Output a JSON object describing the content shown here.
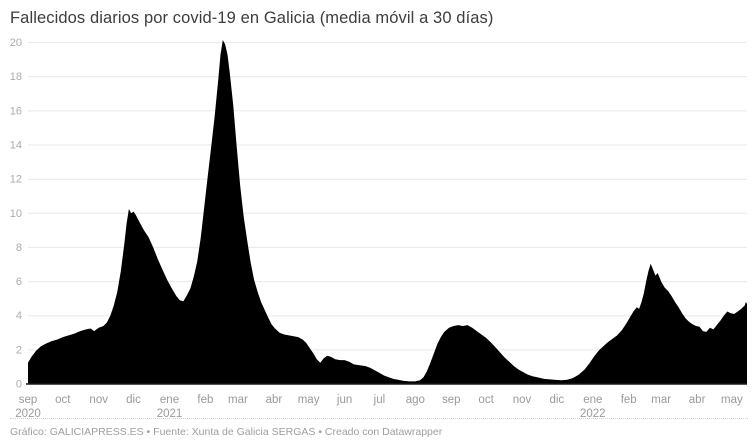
{
  "colors": {
    "area": "#000000",
    "grid": "#e8e8e8",
    "baseline": "#1a1a1a",
    "axis_text_x": "#9a9a9a",
    "axis_text_y": "#ababab",
    "title_text": "#3d3d3d",
    "footer_text": "#9e9e9e"
  },
  "footer": {
    "prefix": "Gráfico: ",
    "source_label": "GALICIAPRESS.ES",
    "middle": " • Fuente: Xunta de Galicia SERGAS • ",
    "credit": "Creado con Datawrapper"
  },
  "chart_data": {
    "type": "area",
    "title": "Fallecidos diarios por covid-19 en Galicia (media móvil a 30 días)",
    "xlabel": "",
    "ylabel": "",
    "ylim": [
      0,
      20
    ],
    "ytick_step": 2,
    "grid": true,
    "legend": "none",
    "x_range": [
      "2020-09-01",
      "2022-05-14"
    ],
    "month_names": [
      "ene",
      "feb",
      "mar",
      "abr",
      "may",
      "jun",
      "jul",
      "ago",
      "sep",
      "oct",
      "nov",
      "dic"
    ],
    "year_labels": {
      "2020-09": "2020",
      "2021-01": "2021",
      "2022-01": "2022"
    },
    "points": [
      [
        "2020-09-01",
        1.25
      ],
      [
        "2020-09-04",
        1.6
      ],
      [
        "2020-09-08",
        1.95
      ],
      [
        "2020-09-12",
        2.2
      ],
      [
        "2020-09-16",
        2.35
      ],
      [
        "2020-09-21",
        2.5
      ],
      [
        "2020-09-26",
        2.6
      ],
      [
        "2020-10-01",
        2.75
      ],
      [
        "2020-10-06",
        2.85
      ],
      [
        "2020-10-11",
        2.95
      ],
      [
        "2020-10-16",
        3.1
      ],
      [
        "2020-10-21",
        3.2
      ],
      [
        "2020-10-25",
        3.25
      ],
      [
        "2020-10-28",
        3.1
      ],
      [
        "2020-11-01",
        3.3
      ],
      [
        "2020-11-05",
        3.4
      ],
      [
        "2020-11-08",
        3.6
      ],
      [
        "2020-11-11",
        4.0
      ],
      [
        "2020-11-14",
        4.6
      ],
      [
        "2020-11-17",
        5.4
      ],
      [
        "2020-11-20",
        6.6
      ],
      [
        "2020-11-23",
        8.2
      ],
      [
        "2020-11-25",
        9.4
      ],
      [
        "2020-11-27",
        10.25
      ],
      [
        "2020-11-29",
        10.0
      ],
      [
        "2020-12-01",
        10.1
      ],
      [
        "2020-12-03",
        9.9
      ],
      [
        "2020-12-06",
        9.5
      ],
      [
        "2020-12-10",
        9.0
      ],
      [
        "2020-12-14",
        8.6
      ],
      [
        "2020-12-18",
        8.0
      ],
      [
        "2020-12-22",
        7.3
      ],
      [
        "2020-12-26",
        6.7
      ],
      [
        "2020-12-30",
        6.1
      ],
      [
        "2021-01-03",
        5.6
      ],
      [
        "2021-01-07",
        5.15
      ],
      [
        "2021-01-10",
        4.9
      ],
      [
        "2021-01-13",
        4.85
      ],
      [
        "2021-01-16",
        5.2
      ],
      [
        "2021-01-19",
        5.6
      ],
      [
        "2021-01-22",
        6.3
      ],
      [
        "2021-01-25",
        7.2
      ],
      [
        "2021-01-28",
        8.6
      ],
      [
        "2021-01-31",
        10.4
      ],
      [
        "2021-02-03",
        12.2
      ],
      [
        "2021-02-06",
        13.9
      ],
      [
        "2021-02-09",
        15.7
      ],
      [
        "2021-02-12",
        17.8
      ],
      [
        "2021-02-14",
        19.3
      ],
      [
        "2021-02-16",
        20.15
      ],
      [
        "2021-02-18",
        19.9
      ],
      [
        "2021-02-20",
        19.3
      ],
      [
        "2021-02-22",
        18.2
      ],
      [
        "2021-02-25",
        16.3
      ],
      [
        "2021-02-28",
        13.9
      ],
      [
        "2021-03-03",
        11.6
      ],
      [
        "2021-03-06",
        9.8
      ],
      [
        "2021-03-09",
        8.4
      ],
      [
        "2021-03-12",
        7.1
      ],
      [
        "2021-03-15",
        6.1
      ],
      [
        "2021-03-18",
        5.4
      ],
      [
        "2021-03-21",
        4.8
      ],
      [
        "2021-03-24",
        4.35
      ],
      [
        "2021-03-27",
        3.9
      ],
      [
        "2021-03-30",
        3.5
      ],
      [
        "2021-04-02",
        3.25
      ],
      [
        "2021-04-06",
        3.0
      ],
      [
        "2021-04-10",
        2.9
      ],
      [
        "2021-04-14",
        2.85
      ],
      [
        "2021-04-18",
        2.8
      ],
      [
        "2021-04-22",
        2.75
      ],
      [
        "2021-04-26",
        2.6
      ],
      [
        "2021-04-29",
        2.4
      ],
      [
        "2021-05-02",
        2.1
      ],
      [
        "2021-05-05",
        1.8
      ],
      [
        "2021-05-08",
        1.45
      ],
      [
        "2021-05-11",
        1.25
      ],
      [
        "2021-05-14",
        1.5
      ],
      [
        "2021-05-17",
        1.65
      ],
      [
        "2021-05-20",
        1.6
      ],
      [
        "2021-05-24",
        1.45
      ],
      [
        "2021-05-28",
        1.4
      ],
      [
        "2021-06-01",
        1.4
      ],
      [
        "2021-06-05",
        1.3
      ],
      [
        "2021-06-09",
        1.15
      ],
      [
        "2021-06-14",
        1.1
      ],
      [
        "2021-06-19",
        1.05
      ],
      [
        "2021-06-23",
        0.95
      ],
      [
        "2021-06-27",
        0.8
      ],
      [
        "2021-07-01",
        0.65
      ],
      [
        "2021-07-05",
        0.5
      ],
      [
        "2021-07-09",
        0.4
      ],
      [
        "2021-07-13",
        0.3
      ],
      [
        "2021-07-17",
        0.25
      ],
      [
        "2021-07-22",
        0.18
      ],
      [
        "2021-07-27",
        0.15
      ],
      [
        "2021-08-01",
        0.15
      ],
      [
        "2021-08-05",
        0.22
      ],
      [
        "2021-08-08",
        0.4
      ],
      [
        "2021-08-11",
        0.75
      ],
      [
        "2021-08-14",
        1.25
      ],
      [
        "2021-08-17",
        1.8
      ],
      [
        "2021-08-20",
        2.35
      ],
      [
        "2021-08-23",
        2.75
      ],
      [
        "2021-08-26",
        3.05
      ],
      [
        "2021-08-30",
        3.3
      ],
      [
        "2021-09-03",
        3.4
      ],
      [
        "2021-09-07",
        3.45
      ],
      [
        "2021-09-11",
        3.4
      ],
      [
        "2021-09-15",
        3.45
      ],
      [
        "2021-09-19",
        3.3
      ],
      [
        "2021-09-23",
        3.1
      ],
      [
        "2021-09-27",
        2.9
      ],
      [
        "2021-10-01",
        2.7
      ],
      [
        "2021-10-05",
        2.45
      ],
      [
        "2021-10-09",
        2.15
      ],
      [
        "2021-10-13",
        1.85
      ],
      [
        "2021-10-17",
        1.55
      ],
      [
        "2021-10-21",
        1.3
      ],
      [
        "2021-10-25",
        1.05
      ],
      [
        "2021-10-29",
        0.85
      ],
      [
        "2021-11-02",
        0.7
      ],
      [
        "2021-11-06",
        0.55
      ],
      [
        "2021-11-10",
        0.45
      ],
      [
        "2021-11-15",
        0.38
      ],
      [
        "2021-11-20",
        0.3
      ],
      [
        "2021-11-25",
        0.27
      ],
      [
        "2021-11-30",
        0.24
      ],
      [
        "2021-12-05",
        0.22
      ],
      [
        "2021-12-10",
        0.25
      ],
      [
        "2021-12-15",
        0.35
      ],
      [
        "2021-12-20",
        0.55
      ],
      [
        "2021-12-25",
        0.85
      ],
      [
        "2021-12-29",
        1.2
      ],
      [
        "2022-01-02",
        1.6
      ],
      [
        "2022-01-06",
        1.95
      ],
      [
        "2022-01-10",
        2.2
      ],
      [
        "2022-01-14",
        2.45
      ],
      [
        "2022-01-18",
        2.65
      ],
      [
        "2022-01-22",
        2.85
      ],
      [
        "2022-01-26",
        3.15
      ],
      [
        "2022-01-30",
        3.55
      ],
      [
        "2022-02-02",
        3.9
      ],
      [
        "2022-02-05",
        4.25
      ],
      [
        "2022-02-08",
        4.5
      ],
      [
        "2022-02-10",
        4.4
      ],
      [
        "2022-02-12",
        4.8
      ],
      [
        "2022-02-14",
        5.3
      ],
      [
        "2022-02-16",
        6.0
      ],
      [
        "2022-02-18",
        6.6
      ],
      [
        "2022-02-20",
        7.05
      ],
      [
        "2022-02-22",
        6.7
      ],
      [
        "2022-02-24",
        6.35
      ],
      [
        "2022-02-26",
        6.5
      ],
      [
        "2022-03-01",
        6.0
      ],
      [
        "2022-03-04",
        5.65
      ],
      [
        "2022-03-07",
        5.45
      ],
      [
        "2022-03-10",
        5.15
      ],
      [
        "2022-03-13",
        4.8
      ],
      [
        "2022-03-16",
        4.5
      ],
      [
        "2022-03-19",
        4.15
      ],
      [
        "2022-03-22",
        3.85
      ],
      [
        "2022-03-25",
        3.65
      ],
      [
        "2022-03-28",
        3.5
      ],
      [
        "2022-03-31",
        3.4
      ],
      [
        "2022-04-03",
        3.35
      ],
      [
        "2022-04-06",
        3.1
      ],
      [
        "2022-04-09",
        3.05
      ],
      [
        "2022-04-12",
        3.3
      ],
      [
        "2022-04-15",
        3.2
      ],
      [
        "2022-04-18",
        3.45
      ],
      [
        "2022-04-21",
        3.7
      ],
      [
        "2022-04-24",
        4.0
      ],
      [
        "2022-04-27",
        4.25
      ],
      [
        "2022-04-30",
        4.15
      ],
      [
        "2022-05-03",
        4.1
      ],
      [
        "2022-05-06",
        4.25
      ],
      [
        "2022-05-09",
        4.4
      ],
      [
        "2022-05-12",
        4.6
      ],
      [
        "2022-05-13",
        4.8
      ],
      [
        "2022-05-14",
        4.7
      ]
    ]
  }
}
